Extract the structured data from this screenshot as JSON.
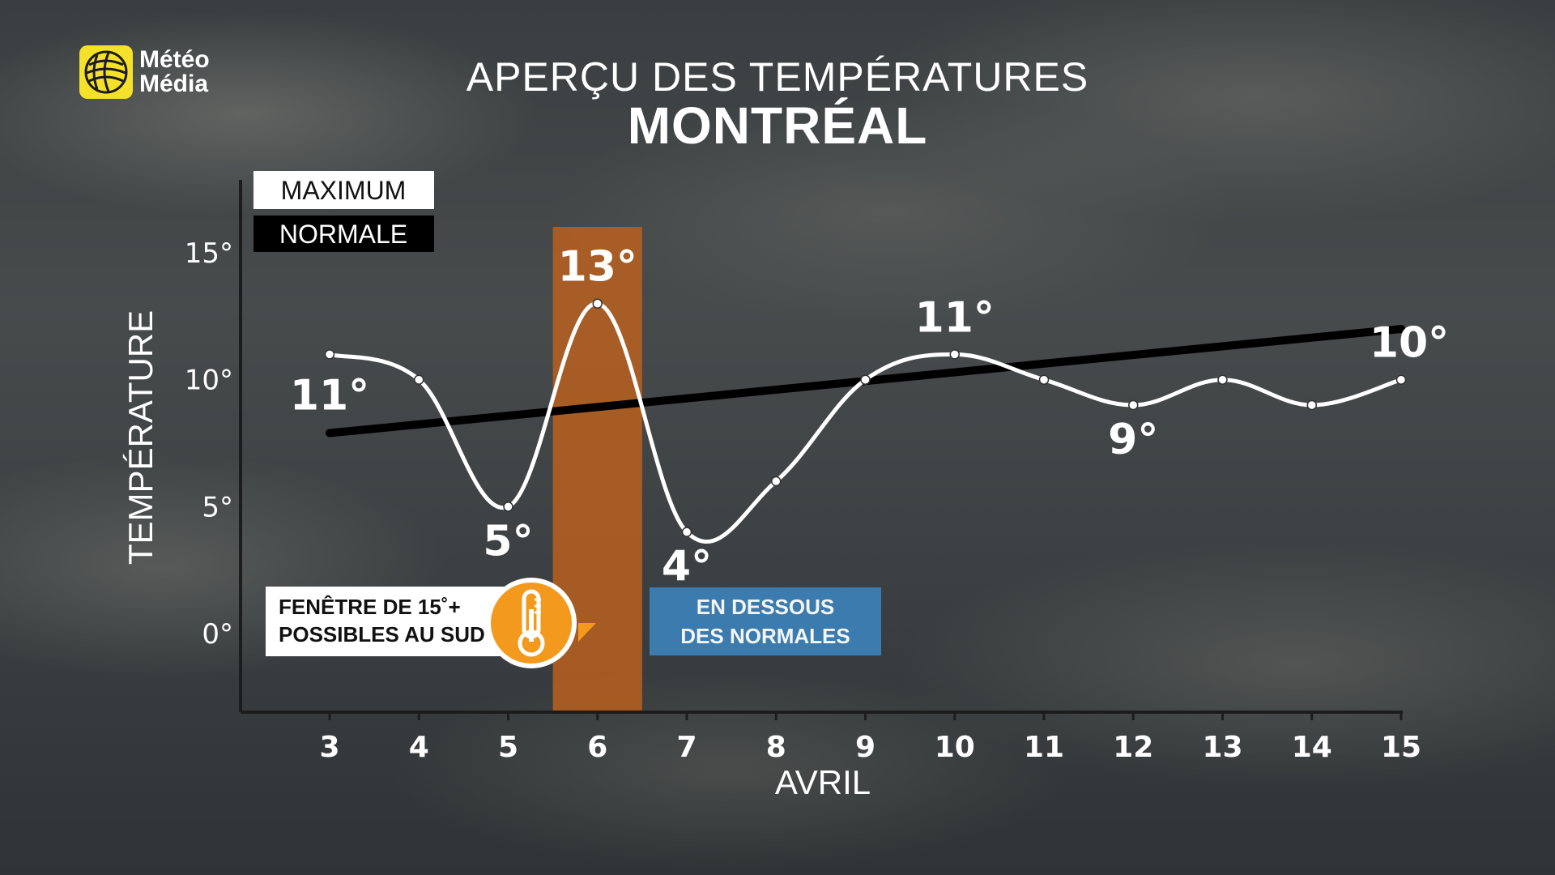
{
  "brand": {
    "line1": "Météo",
    "line2": "Média",
    "accent": "#f5e02a"
  },
  "header": {
    "title": "APERÇU DES TEMPÉRATURES",
    "subtitle": "MONTRÉAL"
  },
  "legend": {
    "maximum": "MAXIMUM",
    "normale": "NORMALE"
  },
  "callouts": {
    "warm_line1": "FENÊTRE DE 15˚+",
    "warm_line2": "POSSIBLES AU SUD",
    "below_line1": "EN DESSOUS",
    "below_line2": "DES NORMALES",
    "warm_icon": "thermometer-icon"
  },
  "colors": {
    "highlight": "#b8601f",
    "below_box": "#3d7fb3",
    "normal_line": "#000000",
    "max_line": "#ffffff",
    "badge": "#f39a1e"
  },
  "chart_data": {
    "type": "line",
    "title": "APERÇU DES TEMPÉRATURES",
    "subtitle": "MONTRÉAL",
    "xlabel": "AVRIL",
    "ylabel": "TEMPÉRATURE",
    "x": [
      3,
      4,
      5,
      6,
      7,
      8,
      9,
      10,
      11,
      12,
      13,
      14,
      15
    ],
    "xticklabels": [
      "3",
      "4",
      "5",
      "6",
      "7",
      "8",
      "9",
      "10",
      "11",
      "12",
      "13",
      "14",
      "15"
    ],
    "ylim": [
      -3,
      18
    ],
    "yticks": [
      0,
      5,
      10,
      15
    ],
    "yticklabels": [
      "0°",
      "5°",
      "10°",
      "15°"
    ],
    "highlight_day": 6,
    "series": [
      {
        "name": "MAXIMUM",
        "values": [
          11,
          10,
          5,
          13,
          4,
          6,
          10,
          11,
          10,
          9,
          10,
          9,
          10
        ]
      },
      {
        "name": "NORMALE",
        "x": [
          3,
          15
        ],
        "values": [
          7.9,
          12.0
        ]
      }
    ],
    "data_labels": [
      {
        "x": 3,
        "text": "11°"
      },
      {
        "x": 5,
        "text": "5°"
      },
      {
        "x": 6,
        "text": "13°"
      },
      {
        "x": 7,
        "text": "4°"
      },
      {
        "x": 10,
        "text": "11°"
      },
      {
        "x": 12,
        "text": "9°"
      },
      {
        "x": 15,
        "text": "10°"
      }
    ]
  }
}
